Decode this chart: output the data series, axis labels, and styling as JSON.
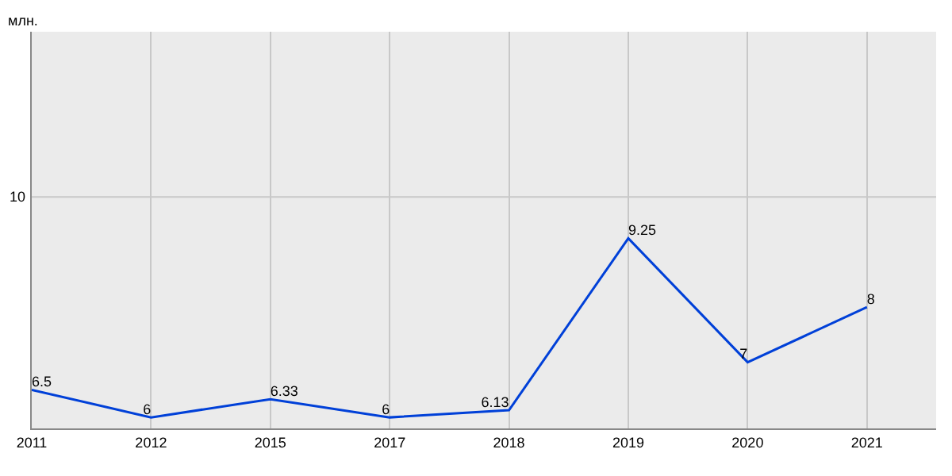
{
  "chart_data": {
    "type": "line",
    "ylabel": "млн.",
    "categories": [
      "2011",
      "2012",
      "2015",
      "2017",
      "2018",
      "2019",
      "2020",
      "2021"
    ],
    "series": [
      {
        "color": "#0040d8",
        "values": [
          6.5,
          6,
          6.33,
          6,
          6.13,
          9.25,
          7,
          8
        ]
      }
    ],
    "ylim": [
      5.8,
      13
    ],
    "ref_lines": [
      {
        "axis": "y",
        "value": 10,
        "label": "10"
      }
    ],
    "grid": "x",
    "data_labels": true,
    "marker": "none",
    "line_style": "solid"
  }
}
